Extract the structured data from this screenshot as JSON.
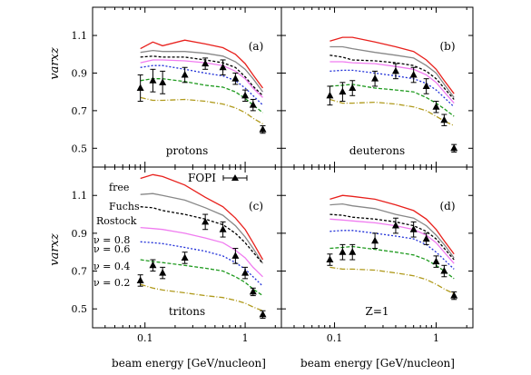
{
  "figure": {
    "ylabel": "varxz",
    "xlabel": "beam energy [GeV/nucleon]",
    "fopi_label": "FOPI",
    "xscale": "log",
    "xlim": [
      0.03,
      2.3
    ],
    "ylim": [
      0.4,
      1.25
    ],
    "yticks": [
      0.5,
      0.7,
      0.9,
      1.1
    ],
    "xtick_labels": [
      {
        "v": 0.1,
        "label": "0.1"
      },
      {
        "v": 1,
        "label": "1"
      }
    ],
    "legend": [
      {
        "key": "free",
        "label": "free"
      },
      {
        "key": "fuchs",
        "label": "Fuchs"
      },
      {
        "key": "rostock",
        "label": "Rostock"
      },
      {
        "key": "nu08",
        "label": "ν = 0.8"
      },
      {
        "key": "nu06",
        "label": "ν = 0.6"
      },
      {
        "key": "nu04",
        "label": "ν = 0.4"
      },
      {
        "key": "nu02",
        "label": "ν = 0.2"
      }
    ]
  },
  "colors": {
    "free": "#e8201c",
    "fuchs": "#888888",
    "rostock": "#000000",
    "nu08": "#f07cf0",
    "nu06": "#1f2fd8",
    "nu04": "#1e9a1e",
    "nu02": "#b09a1c"
  },
  "chart_data": [
    {
      "type": "line",
      "panel_label": "(a)",
      "particle": "protons",
      "x": [
        0.09,
        0.12,
        0.15,
        0.25,
        0.4,
        0.6,
        0.8,
        1.0,
        1.2,
        1.5
      ],
      "series": [
        {
          "key": "free",
          "values": [
            1.03,
            1.065,
            1.045,
            1.075,
            1.055,
            1.035,
            1.0,
            0.95,
            0.89,
            0.82
          ]
        },
        {
          "key": "fuchs",
          "values": [
            1.01,
            1.02,
            1.015,
            1.015,
            1.005,
            0.99,
            0.96,
            0.92,
            0.87,
            0.8
          ]
        },
        {
          "key": "rostock",
          "values": [
            0.985,
            0.99,
            0.985,
            0.985,
            0.97,
            0.955,
            0.93,
            0.88,
            0.83,
            0.78
          ]
        },
        {
          "key": "nu08",
          "values": [
            0.955,
            0.97,
            0.97,
            0.965,
            0.955,
            0.94,
            0.91,
            0.87,
            0.82,
            0.77
          ]
        },
        {
          "key": "nu06",
          "values": [
            0.93,
            0.94,
            0.94,
            0.92,
            0.9,
            0.885,
            0.86,
            0.82,
            0.78,
            0.73
          ]
        },
        {
          "key": "nu04",
          "values": [
            0.86,
            0.87,
            0.87,
            0.855,
            0.835,
            0.825,
            0.8,
            0.765,
            0.73,
            0.69
          ]
        },
        {
          "key": "nu02",
          "values": [
            0.77,
            0.755,
            0.755,
            0.76,
            0.75,
            0.735,
            0.715,
            0.69,
            0.66,
            0.63
          ]
        }
      ],
      "fopi": [
        {
          "x": 0.09,
          "y": 0.82,
          "err": 0.07
        },
        {
          "x": 0.12,
          "y": 0.86,
          "err": 0.06
        },
        {
          "x": 0.15,
          "y": 0.85,
          "err": 0.06
        },
        {
          "x": 0.25,
          "y": 0.89,
          "err": 0.04
        },
        {
          "x": 0.4,
          "y": 0.95,
          "err": 0.03
        },
        {
          "x": 0.6,
          "y": 0.93,
          "err": 0.04
        },
        {
          "x": 0.8,
          "y": 0.87,
          "err": 0.03
        },
        {
          "x": 1.0,
          "y": 0.78,
          "err": 0.03
        },
        {
          "x": 1.2,
          "y": 0.73,
          "err": 0.03
        },
        {
          "x": 1.5,
          "y": 0.6,
          "err": 0.02
        }
      ]
    },
    {
      "type": "line",
      "panel_label": "(b)",
      "particle": "deuterons",
      "x": [
        0.09,
        0.12,
        0.15,
        0.25,
        0.4,
        0.6,
        0.8,
        1.0,
        1.2,
        1.5
      ],
      "series": [
        {
          "key": "free",
          "values": [
            1.07,
            1.09,
            1.09,
            1.065,
            1.04,
            1.015,
            0.97,
            0.92,
            0.86,
            0.79
          ]
        },
        {
          "key": "fuchs",
          "values": [
            1.04,
            1.04,
            1.03,
            1.01,
            0.995,
            0.98,
            0.94,
            0.9,
            0.84,
            0.77
          ]
        },
        {
          "key": "rostock",
          "values": [
            0.995,
            0.985,
            0.97,
            0.965,
            0.955,
            0.94,
            0.91,
            0.87,
            0.82,
            0.76
          ]
        },
        {
          "key": "nu08",
          "values": [
            0.96,
            0.96,
            0.955,
            0.95,
            0.935,
            0.92,
            0.89,
            0.85,
            0.8,
            0.74
          ]
        },
        {
          "key": "nu06",
          "values": [
            0.91,
            0.915,
            0.915,
            0.9,
            0.885,
            0.87,
            0.845,
            0.81,
            0.77,
            0.72
          ]
        },
        {
          "key": "nu04",
          "values": [
            0.83,
            0.835,
            0.84,
            0.82,
            0.81,
            0.8,
            0.77,
            0.74,
            0.71,
            0.67
          ]
        },
        {
          "key": "nu02",
          "values": [
            0.76,
            0.74,
            0.74,
            0.745,
            0.735,
            0.72,
            0.7,
            0.67,
            0.645,
            0.62
          ]
        }
      ],
      "fopi": [
        {
          "x": 0.09,
          "y": 0.78,
          "err": 0.05
        },
        {
          "x": 0.12,
          "y": 0.8,
          "err": 0.05
        },
        {
          "x": 0.15,
          "y": 0.82,
          "err": 0.04
        },
        {
          "x": 0.25,
          "y": 0.87,
          "err": 0.04
        },
        {
          "x": 0.4,
          "y": 0.91,
          "err": 0.04
        },
        {
          "x": 0.6,
          "y": 0.89,
          "err": 0.04
        },
        {
          "x": 0.8,
          "y": 0.83,
          "err": 0.04
        },
        {
          "x": 1.0,
          "y": 0.72,
          "err": 0.03
        },
        {
          "x": 1.2,
          "y": 0.65,
          "err": 0.03
        },
        {
          "x": 1.5,
          "y": 0.5,
          "err": 0.02
        }
      ]
    },
    {
      "type": "line",
      "panel_label": "(c)",
      "particle": "tritons",
      "x": [
        0.09,
        0.12,
        0.15,
        0.25,
        0.4,
        0.6,
        0.8,
        1.0,
        1.2,
        1.5
      ],
      "series": [
        {
          "key": "free",
          "values": [
            1.19,
            1.21,
            1.2,
            1.155,
            1.09,
            1.04,
            0.98,
            0.92,
            0.85,
            0.76
          ]
        },
        {
          "key": "fuchs",
          "values": [
            1.105,
            1.11,
            1.1,
            1.075,
            1.035,
            0.995,
            0.94,
            0.88,
            0.82,
            0.74
          ]
        },
        {
          "key": "rostock",
          "values": [
            1.04,
            1.035,
            1.02,
            1.0,
            0.975,
            0.945,
            0.9,
            0.85,
            0.8,
            0.74
          ]
        },
        {
          "key": "nu08",
          "values": [
            0.93,
            0.925,
            0.92,
            0.9,
            0.875,
            0.85,
            0.81,
            0.77,
            0.72,
            0.67
          ]
        },
        {
          "key": "nu06",
          "values": [
            0.855,
            0.85,
            0.845,
            0.825,
            0.805,
            0.78,
            0.745,
            0.71,
            0.67,
            0.62
          ]
        },
        {
          "key": "nu04",
          "values": [
            0.76,
            0.75,
            0.745,
            0.73,
            0.715,
            0.7,
            0.67,
            0.64,
            0.605,
            0.57
          ]
        },
        {
          "key": "nu02",
          "values": [
            0.63,
            0.61,
            0.6,
            0.585,
            0.57,
            0.56,
            0.545,
            0.53,
            0.51,
            0.49
          ]
        }
      ],
      "fopi": [
        {
          "x": 0.09,
          "y": 0.65,
          "err": 0.03
        },
        {
          "x": 0.12,
          "y": 0.73,
          "err": 0.03
        },
        {
          "x": 0.15,
          "y": 0.69,
          "err": 0.03
        },
        {
          "x": 0.25,
          "y": 0.77,
          "err": 0.03
        },
        {
          "x": 0.4,
          "y": 0.96,
          "err": 0.04
        },
        {
          "x": 0.6,
          "y": 0.92,
          "err": 0.04
        },
        {
          "x": 0.8,
          "y": 0.78,
          "err": 0.04
        },
        {
          "x": 1.0,
          "y": 0.69,
          "err": 0.03
        },
        {
          "x": 1.2,
          "y": 0.59,
          "err": 0.02
        },
        {
          "x": 1.5,
          "y": 0.47,
          "err": 0.02
        }
      ]
    },
    {
      "type": "line",
      "panel_label": "(d)",
      "particle": "Z=1",
      "x": [
        0.09,
        0.12,
        0.15,
        0.25,
        0.4,
        0.6,
        0.8,
        1.0,
        1.2,
        1.5
      ],
      "series": [
        {
          "key": "free",
          "values": [
            1.08,
            1.1,
            1.095,
            1.08,
            1.05,
            1.02,
            0.975,
            0.92,
            0.86,
            0.79
          ]
        },
        {
          "key": "fuchs",
          "values": [
            1.05,
            1.055,
            1.045,
            1.03,
            1.0,
            0.98,
            0.94,
            0.89,
            0.84,
            0.77
          ]
        },
        {
          "key": "rostock",
          "values": [
            1.0,
            0.995,
            0.985,
            0.975,
            0.96,
            0.94,
            0.91,
            0.87,
            0.82,
            0.76
          ]
        },
        {
          "key": "nu08",
          "values": [
            0.975,
            0.97,
            0.965,
            0.955,
            0.94,
            0.92,
            0.89,
            0.85,
            0.8,
            0.74
          ]
        },
        {
          "key": "nu06",
          "values": [
            0.91,
            0.915,
            0.915,
            0.9,
            0.885,
            0.87,
            0.84,
            0.8,
            0.76,
            0.71
          ]
        },
        {
          "key": "nu04",
          "values": [
            0.82,
            0.825,
            0.83,
            0.815,
            0.8,
            0.785,
            0.76,
            0.73,
            0.7,
            0.66
          ]
        },
        {
          "key": "nu02",
          "values": [
            0.72,
            0.71,
            0.71,
            0.705,
            0.69,
            0.675,
            0.655,
            0.63,
            0.605,
            0.58
          ]
        }
      ],
      "fopi": [
        {
          "x": 0.09,
          "y": 0.76,
          "err": 0.03
        },
        {
          "x": 0.12,
          "y": 0.8,
          "err": 0.04
        },
        {
          "x": 0.15,
          "y": 0.8,
          "err": 0.04
        },
        {
          "x": 0.25,
          "y": 0.86,
          "err": 0.04
        },
        {
          "x": 0.4,
          "y": 0.94,
          "err": 0.04
        },
        {
          "x": 0.6,
          "y": 0.92,
          "err": 0.04
        },
        {
          "x": 0.8,
          "y": 0.87,
          "err": 0.03
        },
        {
          "x": 1.0,
          "y": 0.75,
          "err": 0.03
        },
        {
          "x": 1.2,
          "y": 0.7,
          "err": 0.03
        },
        {
          "x": 1.5,
          "y": 0.57,
          "err": 0.02
        }
      ]
    }
  ]
}
